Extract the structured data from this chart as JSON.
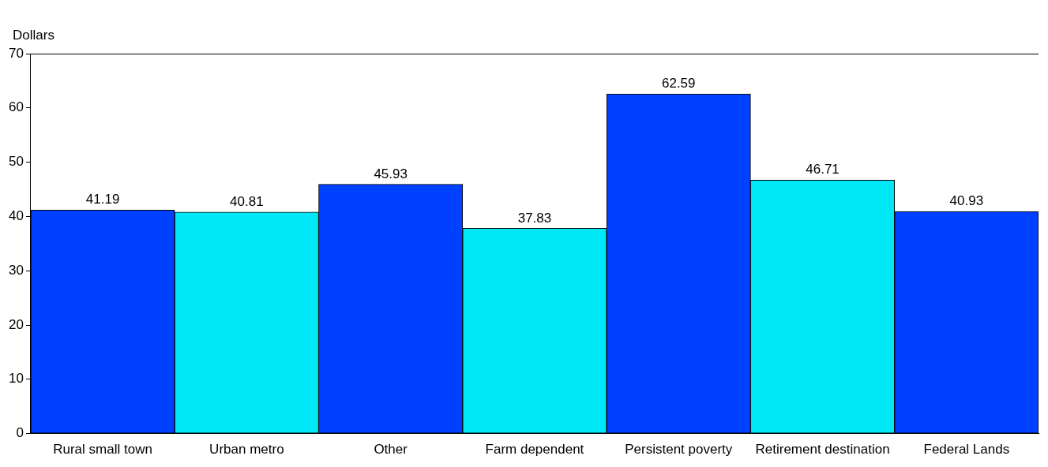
{
  "chart_data": {
    "type": "bar",
    "ylabel": "Dollars",
    "categories": [
      "Rural small town",
      "Urban metro",
      "Other",
      "Farm dependent",
      "Persistent poverty",
      "Retirement destination",
      "Federal Lands"
    ],
    "values": [
      41.19,
      40.81,
      45.93,
      37.83,
      62.59,
      46.71,
      40.93
    ],
    "colors": [
      "#0040ff",
      "#00e8f5",
      "#0040ff",
      "#00e8f5",
      "#0040ff",
      "#00e8f5",
      "#0040ff"
    ],
    "ylim": [
      0,
      70
    ],
    "yticks": [
      0,
      10,
      20,
      30,
      40,
      50,
      60,
      70
    ],
    "grid": false,
    "legend": false,
    "data_labels": true
  }
}
